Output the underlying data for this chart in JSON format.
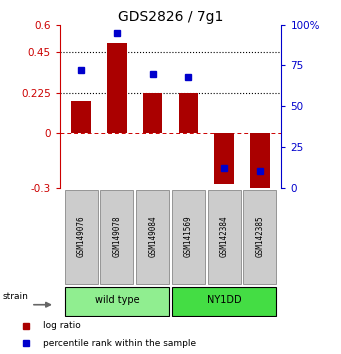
{
  "title": "GDS2826 / 7g1",
  "samples": [
    "GSM149076",
    "GSM149078",
    "GSM149084",
    "GSM141569",
    "GSM142384",
    "GSM142385"
  ],
  "log_ratios": [
    0.18,
    0.5,
    0.225,
    0.225,
    -0.28,
    -0.32
  ],
  "percentile_ranks": [
    72,
    95,
    70,
    68,
    12,
    10
  ],
  "bar_color": "#AA0000",
  "dot_color": "#0000CC",
  "ylim_left": [
    -0.3,
    0.6
  ],
  "ylim_right": [
    0,
    100
  ],
  "yticks_left": [
    -0.3,
    0,
    0.225,
    0.45,
    0.6
  ],
  "yticks_right": [
    0,
    25,
    50,
    75,
    100
  ],
  "hlines": [
    0.225,
    0.45
  ],
  "left_axis_color": "#CC0000",
  "right_axis_color": "#0000CC",
  "wild_type_color": "#90EE90",
  "ny1dd_color": "#44DD44",
  "wild_type_samples": 3,
  "ny1dd_samples": 3
}
